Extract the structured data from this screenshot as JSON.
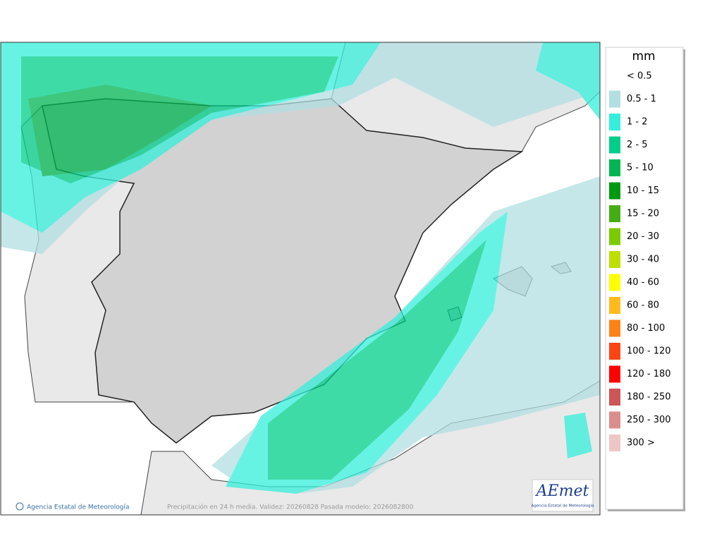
{
  "legend": {
    "title": "mm",
    "items": [
      {
        "label": "< 0.5"
      },
      {
        "label": "0.5 - 1",
        "color": "#b2dfe2"
      },
      {
        "label": "1 - 2",
        "color": "#35efdc"
      },
      {
        "label": "2 - 5",
        "color": "#00cf8a"
      },
      {
        "label": "5 - 10",
        "color": "#00b552"
      },
      {
        "label": "10 - 15",
        "color": "#009a10"
      },
      {
        "label": "15 - 20",
        "color": "#44ad14"
      },
      {
        "label": "20 - 30",
        "color": "#7acb00"
      },
      {
        "label": "30 - 40",
        "color": "#bde000"
      },
      {
        "label": "40 - 60",
        "color": "#ffff00"
      },
      {
        "label": "60 - 80",
        "color": "#ffbb1c"
      },
      {
        "label": "80 - 100",
        "color": "#ff8214"
      },
      {
        "label": "100 - 120",
        "color": "#ff4414"
      },
      {
        "label": "120 - 180",
        "color": "#ff0000"
      },
      {
        "label": "180 - 250",
        "color": "#cc5555"
      },
      {
        "label": "250 - 300",
        "color": "#dd8c8c"
      },
      {
        "label": "300 >",
        "color": "#efc6c6"
      }
    ]
  },
  "footer": {
    "credit": "Agencia Estatal de Meteorología",
    "caption": "Precipitación en 24 h media. Validez: 20260828 Pasada modelo: 2026082800"
  },
  "logo": {
    "name": "AEmet",
    "subtitle": "Agencia Estatal de Meteorología"
  }
}
